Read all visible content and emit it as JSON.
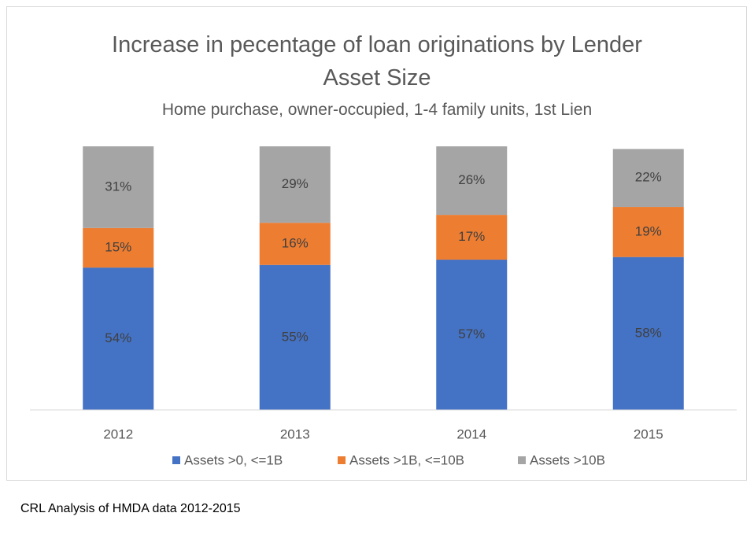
{
  "chart_data": {
    "type": "stacked_bar",
    "title": "Increase in pecentage of loan originations by Lender Asset Size",
    "subtitle": "Home purchase, owner-occupied, 1-4 family units, 1st Lien",
    "categories": [
      "2012",
      "2013",
      "2014",
      "2015"
    ],
    "ylim": [
      0,
      100
    ],
    "series": [
      {
        "name": "Assets >0, <=1B",
        "color": "#4472c4",
        "values": [
          54,
          55,
          57,
          58
        ],
        "value_labels": [
          "54%",
          "55%",
          "57%",
          "58%"
        ]
      },
      {
        "name": "Assets >1B, <=10B",
        "color": "#ed7d31",
        "values": [
          15,
          16,
          17,
          19
        ],
        "value_labels": [
          "15%",
          "16%",
          "17%",
          "19%"
        ]
      },
      {
        "name": "Assets >10B",
        "color": "#a5a5a5",
        "values": [
          31,
          29,
          26,
          22
        ],
        "value_labels": [
          "31%",
          "29%",
          "26%",
          "22%"
        ]
      }
    ],
    "legend": "bottom",
    "footer": "CRL Analysis of HMDA data 2012-2015"
  }
}
